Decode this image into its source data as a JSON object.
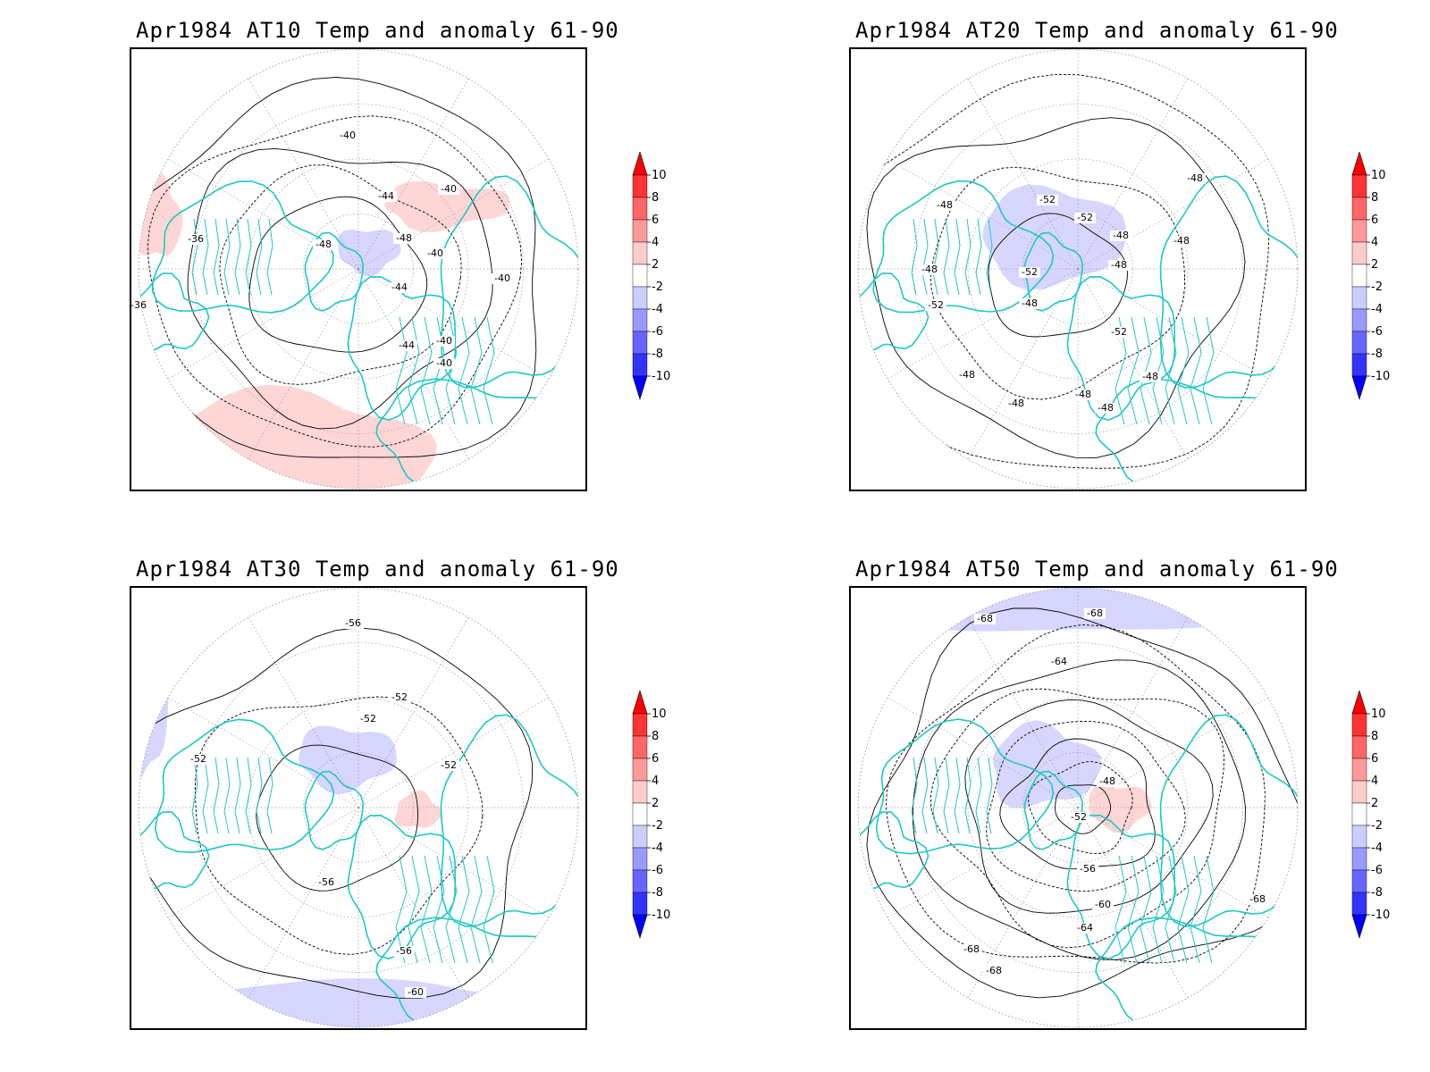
{
  "panels": [
    {
      "id": "at10",
      "title": "Apr1984 AT10 Temp and anomaly 61-90",
      "contour_labels": [
        "-40",
        "-44",
        "-48",
        "-48",
        "-40",
        "-40",
        "-36",
        "-36",
        "-44",
        "-40",
        "-44",
        "-40",
        "-40"
      ],
      "anomaly_patches": [
        {
          "sign": "positive",
          "level": 2
        },
        {
          "sign": "positive",
          "level": 2
        },
        {
          "sign": "positive",
          "level": 2
        },
        {
          "sign": "negative",
          "level": 2
        }
      ]
    },
    {
      "id": "at20",
      "title": "Apr1984 AT20 Temp and anomaly 61-90",
      "contour_labels": [
        "-48",
        "-52",
        "-52",
        "-48",
        "-48",
        "-48",
        "-48",
        "-52",
        "-52",
        "-48",
        "-48",
        "-52",
        "-48",
        "-48",
        "-48",
        "-48",
        "-48"
      ],
      "anomaly_patches": [
        {
          "sign": "negative",
          "level": 4
        },
        {
          "sign": "negative",
          "level": 2
        }
      ]
    },
    {
      "id": "at30",
      "title": "Apr1984 AT30 Temp and anomaly 61-90",
      "contour_labels": [
        "-56",
        "-52",
        "-52",
        "-52",
        "-52",
        "-56",
        "-56",
        "-60"
      ],
      "anomaly_patches": [
        {
          "sign": "negative",
          "level": 2
        },
        {
          "sign": "negative",
          "level": 2
        },
        {
          "sign": "negative",
          "level": 2
        },
        {
          "sign": "positive",
          "level": 2
        }
      ]
    },
    {
      "id": "at50",
      "title": "Apr1984 AT50 Temp and anomaly 61-90",
      "contour_labels": [
        "-68",
        "-68",
        "-64",
        "-48",
        "-52",
        "-56",
        "-60",
        "-64",
        "-68",
        "-68",
        "-68"
      ],
      "anomaly_patches": [
        {
          "sign": "negative",
          "level": 2
        },
        {
          "sign": "negative",
          "level": 2
        },
        {
          "sign": "positive",
          "level": 2
        }
      ]
    }
  ],
  "colorbar": {
    "levels": [
      "10",
      "8",
      "6",
      "4",
      "2",
      "-2",
      "-4",
      "-6",
      "-8",
      "-10"
    ],
    "colors": [
      "#ff0000",
      "#ff3333",
      "#ff6666",
      "#ff9999",
      "#ffcccc",
      "#ffffff",
      "#ccccff",
      "#9999ff",
      "#6666ff",
      "#3333ff",
      "#0000ff"
    ]
  },
  "style": {
    "coastline_color": "#1fc7c7",
    "contour_color": "#000000",
    "grid_color": "#9a9a9a",
    "positive_fill": "#ffd6d6",
    "negative_fill": "#d6d6ff",
    "negative_fill_strong": "#a8a8ff"
  }
}
